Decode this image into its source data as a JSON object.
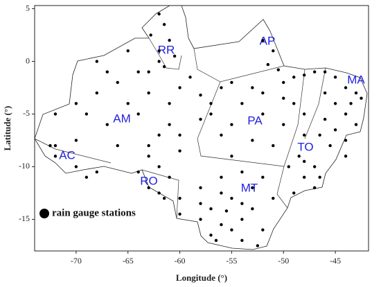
{
  "chart_data": {
    "type": "scatter",
    "xlabel": "Longitude (°)",
    "ylabel": "Latitude (°)",
    "xlim": [
      -74,
      -41.8
    ],
    "ylim": [
      -18,
      5.3
    ],
    "xticks": [
      -70,
      -65,
      -60,
      -55,
      -50,
      -45
    ],
    "yticks": [
      5,
      0,
      -5,
      -10,
      -15
    ],
    "annotations": [
      "RR",
      "AP",
      "AM",
      "PA",
      "MA",
      "AC",
      "TO",
      "RO",
      "MT"
    ],
    "legend": "bottom-left",
    "series": [
      {
        "name": "rain gauge stations",
        "color": "#000000",
        "x": [
          -62,
          -61.5,
          -62.8,
          -61,
          -62,
          -60.5,
          -61.5,
          -63,
          -52,
          -51,
          -51.5,
          -50.5,
          -72,
          -70,
          -68,
          -66,
          -64,
          -67,
          -64,
          -61,
          -60,
          -58,
          -62,
          -66,
          -70,
          -72,
          -60,
          -58,
          -68,
          -65,
          -67,
          -63,
          -69,
          -61,
          -65,
          -57,
          -59,
          -62,
          -56,
          -63,
          -60,
          -72,
          -70,
          -68,
          -72.5,
          -69,
          -63,
          -62,
          -64,
          -61,
          -63,
          -62,
          -61.5,
          -55,
          -53,
          -52,
          -50,
          -49,
          -48,
          -47,
          -54,
          -52,
          -55,
          -56,
          -53,
          -50,
          -51,
          -55,
          -49,
          -48,
          -50,
          -57,
          -46,
          -45,
          -44,
          -43,
          -45,
          -44,
          -46,
          -43,
          -45,
          -44,
          -46,
          -43.5,
          -42.5,
          -45.5,
          -46.5,
          -44,
          -48,
          -48.5,
          -47,
          -48,
          -47,
          -49,
          -46.5,
          -48,
          -49.5,
          -60,
          -58,
          -56,
          -54,
          -52,
          -55,
          -57,
          -58,
          -56,
          -54,
          -55,
          -53,
          -52,
          -57,
          -54,
          -58,
          -51,
          -56,
          -60,
          -53,
          -55.5,
          -54,
          -52.5,
          -56.5
        ],
        "y": [
          4.5,
          3.5,
          2.5,
          2,
          1,
          0.5,
          -0.5,
          -1,
          2,
          1,
          -0.3,
          -0.8,
          -5,
          -4,
          -3,
          -2,
          -1,
          -6,
          -5,
          -4,
          -2.5,
          -3.2,
          -7,
          -8,
          -7.5,
          -8,
          -7,
          -5.5,
          0,
          1,
          -1,
          -3,
          -5,
          -6,
          -4,
          -4,
          -1.5,
          0,
          -2.5,
          -8,
          -8.5,
          -9,
          -10,
          -10.5,
          -8,
          -11,
          -9,
          -10,
          -10.5,
          -11,
          -12,
          -12.5,
          -13,
          -2,
          -2.5,
          -3,
          -2,
          -1.5,
          -1.3,
          -1,
          -4,
          -5,
          -6,
          -7,
          -7.5,
          -6,
          -8,
          -9,
          -4,
          -5,
          -3.5,
          -5,
          -1,
          -1.5,
          -2.5,
          -3,
          -4,
          -5,
          -3,
          -6,
          -6.5,
          -7.5,
          -5.5,
          -4,
          -3.5,
          -8,
          -7,
          -9,
          -7,
          -9,
          -10,
          -11,
          -12,
          -12.5,
          -11,
          -9.5,
          -10,
          -13,
          -12,
          -11,
          -10.5,
          -11,
          -13,
          -14,
          -15,
          -15.5,
          -15,
          -16,
          -14,
          -16,
          -16.5,
          -17,
          -13.5,
          -13,
          -12.5,
          -14.5,
          -12,
          -14.2,
          -13.5,
          -17.5,
          -17
        ]
      }
    ]
  }
}
